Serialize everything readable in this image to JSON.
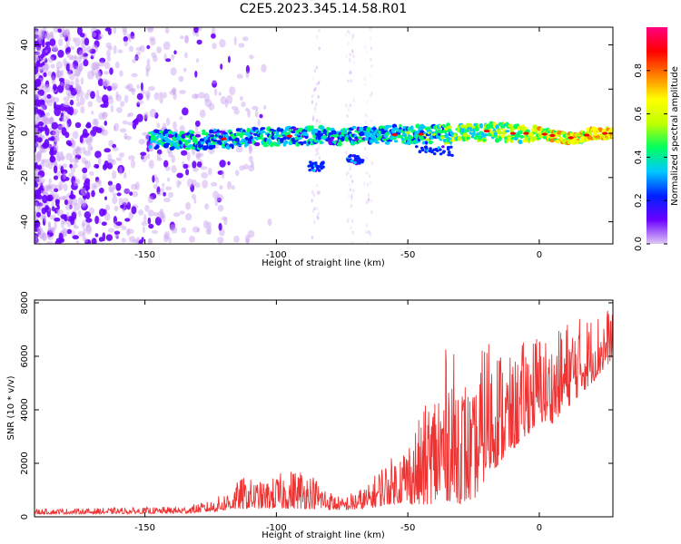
{
  "title": "C2E5.2023.345.14.58.R01",
  "chart_data": [
    {
      "type": "heatmap",
      "xlabel": "Height of straight line (km)",
      "ylabel": "Frequency (Hz)",
      "xlim": [
        -192,
        28
      ],
      "ylim": [
        -50,
        48
      ],
      "xticks": [
        "-150",
        "-100",
        "-50",
        "0"
      ],
      "yticks": [
        "-40",
        "-20",
        "0",
        "20",
        "40"
      ],
      "grid": false,
      "colorbar": {
        "label": "Normalized spectral amplitude",
        "range": [
          0,
          1
        ],
        "ticks": [
          "0.0",
          "0.2",
          "0.4",
          "0.6",
          "0.8"
        ],
        "colors": [
          "#e0c8f4",
          "#6a00ff",
          "#0020ff",
          "#00c8ff",
          "#00ff60",
          "#c0ff00",
          "#ffff00",
          "#ff8000",
          "#ff0000",
          "#ff0080"
        ]
      },
      "ridge": {
        "x": [
          -145,
          -130,
          -110,
          -90,
          -70,
          -50,
          -30,
          -20,
          -10,
          0,
          5,
          10,
          15,
          20,
          28
        ],
        "y": [
          -3,
          -3,
          -2,
          -1,
          -1,
          -0.5,
          0,
          1,
          0,
          0,
          -1,
          -2,
          -2,
          0,
          0
        ]
      }
    },
    {
      "type": "line",
      "xlabel": "Height of straight line (km)",
      "ylabel": "SNR (10 * v/v)",
      "xlim": [
        -192,
        28
      ],
      "ylim": [
        0,
        8100
      ],
      "xticks": [
        "-150",
        "-100",
        "-50",
        "0"
      ],
      "yticks": [
        "0",
        "2000",
        "4000",
        "6000",
        "8000"
      ],
      "grid": false,
      "series": [
        {
          "color": "#ee3333",
          "envelope": {
            "x": [
              -192,
              -170,
              -150,
              -135,
              -125,
              -118,
              -113,
              -105,
              -97,
              -90,
              -85,
              -80,
              -75,
              -70,
              -65,
              -60,
              -55,
              -50,
              -45,
              -40,
              -35,
              -30,
              -25,
              -20,
              -15,
              -10,
              -5,
              0,
              5,
              10,
              15,
              20,
              25,
              28
            ],
            "high": [
              300,
              320,
              350,
              400,
              600,
              1000,
              1500,
              1300,
              1700,
              1900,
              1500,
              1000,
              700,
              1000,
              1200,
              2000,
              2300,
              3000,
              3800,
              5000,
              6500,
              5800,
              4500,
              7200,
              6500,
              5800,
              6800,
              7000,
              6600,
              7400,
              7500,
              7600,
              7800,
              7900
            ],
            "low": [
              100,
              110,
              120,
              130,
              180,
              250,
              300,
              300,
              300,
              300,
              300,
              250,
              250,
              250,
              300,
              400,
              500,
              500,
              400,
              500,
              600,
              500,
              600,
              1500,
              2000,
              2500,
              3000,
              3500,
              3500,
              4000,
              4500,
              5000,
              5500,
              6000
            ]
          }
        }
      ]
    }
  ]
}
